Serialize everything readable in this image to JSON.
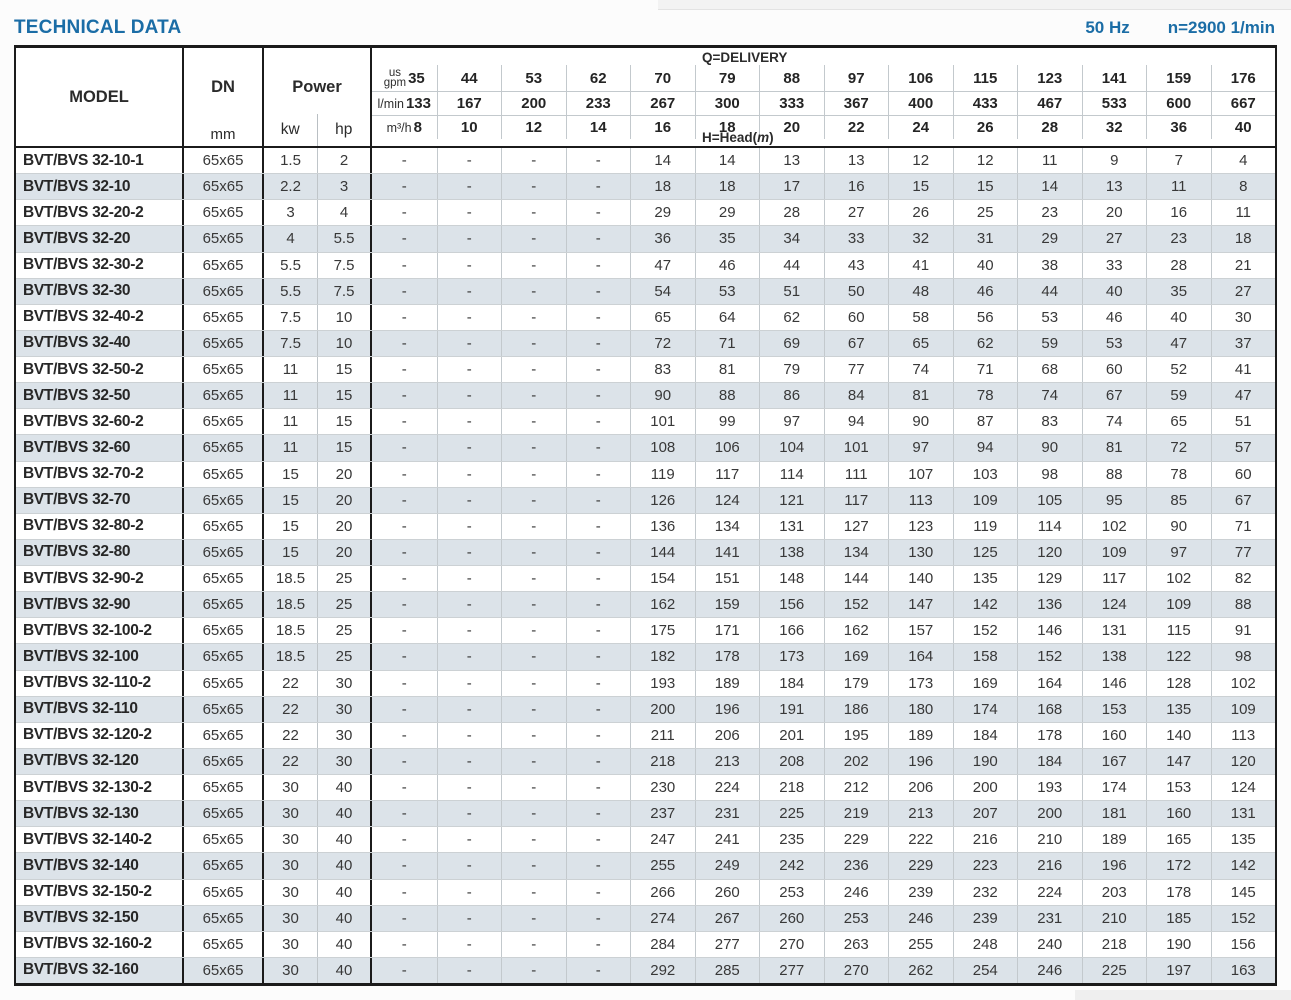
{
  "page": {
    "title": "TECHNICAL DATA",
    "frequency": "50 Hz",
    "speed": "n=2900 1/min",
    "accent_color": "#1b6da6"
  },
  "table": {
    "headers": {
      "model": "MODEL",
      "dn": "DN",
      "dn_unit": "mm",
      "power": "Power",
      "power_units": [
        "kw",
        "hp"
      ],
      "delivery_label": "Q=DELIVERY",
      "head_prefix": "H=Head(",
      "head_unit": "m",
      "head_suffix": ")",
      "unit_gpm_line1": "us",
      "unit_gpm_line2": "gpm",
      "unit_lmin": "l/min",
      "unit_m3h": "m³/h"
    },
    "delivery": {
      "us_gpm": [
        35,
        44,
        53,
        62,
        70,
        79,
        88,
        97,
        106,
        115,
        123,
        141,
        159,
        176
      ],
      "l_min": [
        133,
        167,
        200,
        233,
        267,
        300,
        333,
        367,
        400,
        433,
        467,
        533,
        600,
        667
      ],
      "m3_h": [
        8,
        10,
        12,
        14,
        16,
        18,
        20,
        22,
        24,
        26,
        28,
        32,
        36,
        40
      ]
    },
    "rows": [
      {
        "model": "BVT/BVS 32-10-1",
        "dn": "65x65",
        "kw": "1.5",
        "hp": "2",
        "head": [
          "-",
          "-",
          "-",
          "-",
          "14",
          "14",
          "13",
          "13",
          "12",
          "12",
          "11",
          "9",
          "7",
          "4"
        ]
      },
      {
        "model": "BVT/BVS 32-10",
        "dn": "65x65",
        "kw": "2.2",
        "hp": "3",
        "head": [
          "-",
          "-",
          "-",
          "-",
          "18",
          "18",
          "17",
          "16",
          "15",
          "15",
          "14",
          "13",
          "11",
          "8"
        ]
      },
      {
        "model": "BVT/BVS 32-20-2",
        "dn": "65x65",
        "kw": "3",
        "hp": "4",
        "head": [
          "-",
          "-",
          "-",
          "-",
          "29",
          "29",
          "28",
          "27",
          "26",
          "25",
          "23",
          "20",
          "16",
          "11"
        ]
      },
      {
        "model": "BVT/BVS 32-20",
        "dn": "65x65",
        "kw": "4",
        "hp": "5.5",
        "head": [
          "-",
          "-",
          "-",
          "-",
          "36",
          "35",
          "34",
          "33",
          "32",
          "31",
          "29",
          "27",
          "23",
          "18"
        ]
      },
      {
        "model": "BVT/BVS 32-30-2",
        "dn": "65x65",
        "kw": "5.5",
        "hp": "7.5",
        "head": [
          "-",
          "-",
          "-",
          "-",
          "47",
          "46",
          "44",
          "43",
          "41",
          "40",
          "38",
          "33",
          "28",
          "21"
        ]
      },
      {
        "model": "BVT/BVS 32-30",
        "dn": "65x65",
        "kw": "5.5",
        "hp": "7.5",
        "head": [
          "-",
          "-",
          "-",
          "-",
          "54",
          "53",
          "51",
          "50",
          "48",
          "46",
          "44",
          "40",
          "35",
          "27"
        ]
      },
      {
        "model": "BVT/BVS 32-40-2",
        "dn": "65x65",
        "kw": "7.5",
        "hp": "10",
        "head": [
          "-",
          "-",
          "-",
          "-",
          "65",
          "64",
          "62",
          "60",
          "58",
          "56",
          "53",
          "46",
          "40",
          "30"
        ]
      },
      {
        "model": "BVT/BVS 32-40",
        "dn": "65x65",
        "kw": "7.5",
        "hp": "10",
        "head": [
          "-",
          "-",
          "-",
          "-",
          "72",
          "71",
          "69",
          "67",
          "65",
          "62",
          "59",
          "53",
          "47",
          "37"
        ]
      },
      {
        "model": "BVT/BVS 32-50-2",
        "dn": "65x65",
        "kw": "11",
        "hp": "15",
        "head": [
          "-",
          "-",
          "-",
          "-",
          "83",
          "81",
          "79",
          "77",
          "74",
          "71",
          "68",
          "60",
          "52",
          "41"
        ]
      },
      {
        "model": "BVT/BVS 32-50",
        "dn": "65x65",
        "kw": "11",
        "hp": "15",
        "head": [
          "-",
          "-",
          "-",
          "-",
          "90",
          "88",
          "86",
          "84",
          "81",
          "78",
          "74",
          "67",
          "59",
          "47"
        ]
      },
      {
        "model": "BVT/BVS 32-60-2",
        "dn": "65x65",
        "kw": "11",
        "hp": "15",
        "head": [
          "-",
          "-",
          "-",
          "-",
          "101",
          "99",
          "97",
          "94",
          "90",
          "87",
          "83",
          "74",
          "65",
          "51"
        ]
      },
      {
        "model": "BVT/BVS 32-60",
        "dn": "65x65",
        "kw": "11",
        "hp": "15",
        "head": [
          "-",
          "-",
          "-",
          "-",
          "108",
          "106",
          "104",
          "101",
          "97",
          "94",
          "90",
          "81",
          "72",
          "57"
        ]
      },
      {
        "model": "BVT/BVS 32-70-2",
        "dn": "65x65",
        "kw": "15",
        "hp": "20",
        "head": [
          "-",
          "-",
          "-",
          "-",
          "119",
          "117",
          "114",
          "111",
          "107",
          "103",
          "98",
          "88",
          "78",
          "60"
        ]
      },
      {
        "model": "BVT/BVS 32-70",
        "dn": "65x65",
        "kw": "15",
        "hp": "20",
        "head": [
          "-",
          "-",
          "-",
          "-",
          "126",
          "124",
          "121",
          "117",
          "113",
          "109",
          "105",
          "95",
          "85",
          "67"
        ]
      },
      {
        "model": "BVT/BVS 32-80-2",
        "dn": "65x65",
        "kw": "15",
        "hp": "20",
        "head": [
          "-",
          "-",
          "-",
          "-",
          "136",
          "134",
          "131",
          "127",
          "123",
          "119",
          "114",
          "102",
          "90",
          "71"
        ]
      },
      {
        "model": "BVT/BVS 32-80",
        "dn": "65x65",
        "kw": "15",
        "hp": "20",
        "head": [
          "-",
          "-",
          "-",
          "-",
          "144",
          "141",
          "138",
          "134",
          "130",
          "125",
          "120",
          "109",
          "97",
          "77"
        ]
      },
      {
        "model": "BVT/BVS 32-90-2",
        "dn": "65x65",
        "kw": "18.5",
        "hp": "25",
        "head": [
          "-",
          "-",
          "-",
          "-",
          "154",
          "151",
          "148",
          "144",
          "140",
          "135",
          "129",
          "117",
          "102",
          "82"
        ]
      },
      {
        "model": "BVT/BVS 32-90",
        "dn": "65x65",
        "kw": "18.5",
        "hp": "25",
        "head": [
          "-",
          "-",
          "-",
          "-",
          "162",
          "159",
          "156",
          "152",
          "147",
          "142",
          "136",
          "124",
          "109",
          "88"
        ]
      },
      {
        "model": "BVT/BVS 32-100-2",
        "dn": "65x65",
        "kw": "18.5",
        "hp": "25",
        "head": [
          "-",
          "-",
          "-",
          "-",
          "175",
          "171",
          "166",
          "162",
          "157",
          "152",
          "146",
          "131",
          "115",
          "91"
        ]
      },
      {
        "model": "BVT/BVS 32-100",
        "dn": "65x65",
        "kw": "18.5",
        "hp": "25",
        "head": [
          "-",
          "-",
          "-",
          "-",
          "182",
          "178",
          "173",
          "169",
          "164",
          "158",
          "152",
          "138",
          "122",
          "98"
        ]
      },
      {
        "model": "BVT/BVS 32-110-2",
        "dn": "65x65",
        "kw": "22",
        "hp": "30",
        "head": [
          "-",
          "-",
          "-",
          "-",
          "193",
          "189",
          "184",
          "179",
          "173",
          "169",
          "164",
          "146",
          "128",
          "102"
        ]
      },
      {
        "model": "BVT/BVS 32-110",
        "dn": "65x65",
        "kw": "22",
        "hp": "30",
        "head": [
          "-",
          "-",
          "-",
          "-",
          "200",
          "196",
          "191",
          "186",
          "180",
          "174",
          "168",
          "153",
          "135",
          "109"
        ]
      },
      {
        "model": "BVT/BVS 32-120-2",
        "dn": "65x65",
        "kw": "22",
        "hp": "30",
        "head": [
          "-",
          "-",
          "-",
          "-",
          "211",
          "206",
          "201",
          "195",
          "189",
          "184",
          "178",
          "160",
          "140",
          "113"
        ]
      },
      {
        "model": "BVT/BVS 32-120",
        "dn": "65x65",
        "kw": "22",
        "hp": "30",
        "head": [
          "-",
          "-",
          "-",
          "-",
          "218",
          "213",
          "208",
          "202",
          "196",
          "190",
          "184",
          "167",
          "147",
          "120"
        ]
      },
      {
        "model": "BVT/BVS 32-130-2",
        "dn": "65x65",
        "kw": "30",
        "hp": "40",
        "head": [
          "-",
          "-",
          "-",
          "-",
          "230",
          "224",
          "218",
          "212",
          "206",
          "200",
          "193",
          "174",
          "153",
          "124"
        ]
      },
      {
        "model": "BVT/BVS 32-130",
        "dn": "65x65",
        "kw": "30",
        "hp": "40",
        "head": [
          "-",
          "-",
          "-",
          "-",
          "237",
          "231",
          "225",
          "219",
          "213",
          "207",
          "200",
          "181",
          "160",
          "131"
        ]
      },
      {
        "model": "BVT/BVS 32-140-2",
        "dn": "65x65",
        "kw": "30",
        "hp": "40",
        "head": [
          "-",
          "-",
          "-",
          "-",
          "247",
          "241",
          "235",
          "229",
          "222",
          "216",
          "210",
          "189",
          "165",
          "135"
        ]
      },
      {
        "model": "BVT/BVS 32-140",
        "dn": "65x65",
        "kw": "30",
        "hp": "40",
        "head": [
          "-",
          "-",
          "-",
          "-",
          "255",
          "249",
          "242",
          "236",
          "229",
          "223",
          "216",
          "196",
          "172",
          "142"
        ]
      },
      {
        "model": "BVT/BVS 32-150-2",
        "dn": "65x65",
        "kw": "30",
        "hp": "40",
        "head": [
          "-",
          "-",
          "-",
          "-",
          "266",
          "260",
          "253",
          "246",
          "239",
          "232",
          "224",
          "203",
          "178",
          "145"
        ]
      },
      {
        "model": "BVT/BVS 32-150",
        "dn": "65x65",
        "kw": "30",
        "hp": "40",
        "head": [
          "-",
          "-",
          "-",
          "-",
          "274",
          "267",
          "260",
          "253",
          "246",
          "239",
          "231",
          "210",
          "185",
          "152"
        ]
      },
      {
        "model": "BVT/BVS 32-160-2",
        "dn": "65x65",
        "kw": "30",
        "hp": "40",
        "head": [
          "-",
          "-",
          "-",
          "-",
          "284",
          "277",
          "270",
          "263",
          "255",
          "248",
          "240",
          "218",
          "190",
          "156"
        ]
      },
      {
        "model": "BVT/BVS 32-160",
        "dn": "65x65",
        "kw": "30",
        "hp": "40",
        "head": [
          "-",
          "-",
          "-",
          "-",
          "292",
          "285",
          "277",
          "270",
          "262",
          "254",
          "246",
          "225",
          "197",
          "163"
        ]
      }
    ]
  }
}
